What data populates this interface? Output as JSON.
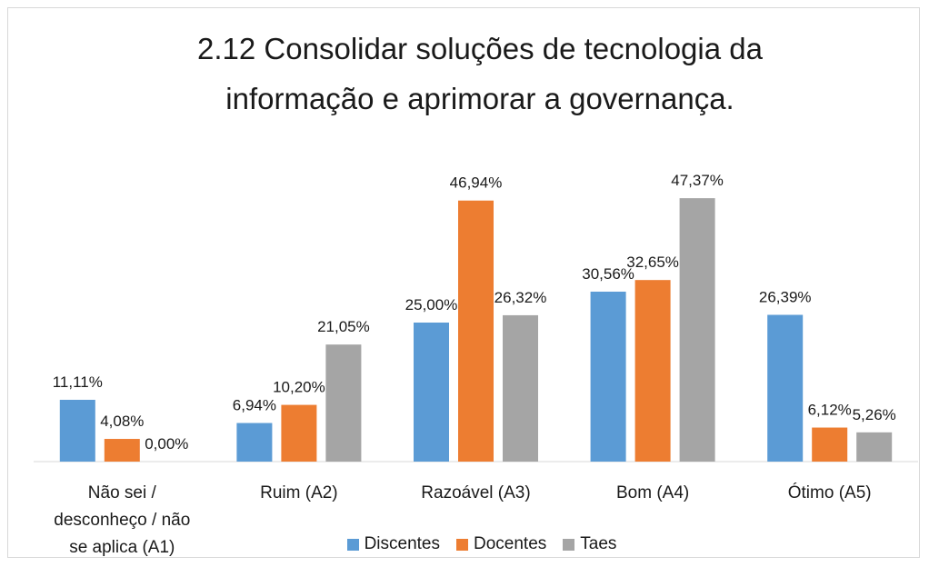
{
  "chart_data": {
    "type": "bar",
    "title": "2.12 Consolidar soluções de tecnologia da informação e aprimorar a governança.",
    "categories": [
      "Não sei / desconheço / não se aplica (A1)",
      "Ruim (A2)",
      "Razoável (A3)",
      "Bom (A4)",
      "Ótimo (A5)"
    ],
    "series": [
      {
        "name": "Discentes",
        "color": "#5b9bd5",
        "values": [
          11.11,
          6.94,
          25.0,
          30.56,
          26.39
        ],
        "value_labels": [
          "11,11%",
          "6,94%",
          "25,00%",
          "30,56%",
          "26,39%"
        ]
      },
      {
        "name": "Docentes",
        "color": "#ed7d31",
        "values": [
          4.08,
          10.2,
          46.94,
          32.65,
          6.12
        ],
        "value_labels": [
          "4,08%",
          "10,20%",
          "46,94%",
          "32,65%",
          "6,12%"
        ]
      },
      {
        "name": "Taes",
        "color": "#a5a5a5",
        "values": [
          0.0,
          21.05,
          26.32,
          47.37,
          5.26
        ],
        "value_labels": [
          "0,00%",
          "21,05%",
          "26,32%",
          "47,37%",
          "5,26%"
        ]
      }
    ],
    "ylim": [
      0,
      50
    ],
    "legend": "bottom"
  }
}
